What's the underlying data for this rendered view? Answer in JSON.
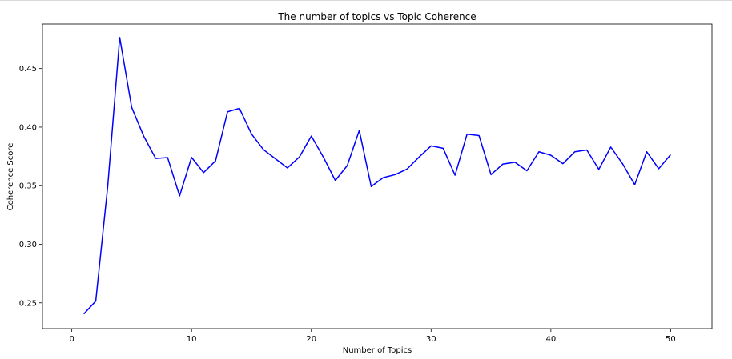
{
  "chart_data": {
    "type": "line",
    "title": "The number of topics vs Topic Coherence",
    "xlabel": "Number of Topics",
    "ylabel": "Coherence Score",
    "xlim": [
      -2.45,
      53.45
    ],
    "ylim": [
      0.228,
      0.488
    ],
    "xticks": [
      0,
      10,
      20,
      30,
      40,
      50
    ],
    "yticks": [
      0.25,
      0.3,
      0.35,
      0.4,
      0.45
    ],
    "ytick_labels": [
      "0.25",
      "0.30",
      "0.35",
      "0.40",
      "0.45"
    ],
    "grid": false,
    "color": "#0000ff",
    "x": [
      1,
      2,
      3,
      4,
      5,
      6,
      7,
      8,
      9,
      10,
      11,
      12,
      13,
      14,
      15,
      16,
      17,
      18,
      19,
      20,
      21,
      22,
      23,
      24,
      25,
      26,
      27,
      28,
      29,
      30,
      31,
      32,
      33,
      34,
      35,
      36,
      37,
      38,
      39,
      40,
      41,
      42,
      43,
      44,
      45,
      46,
      47,
      48,
      49,
      50
    ],
    "y": [
      0.2405,
      0.2515,
      0.3495,
      0.4765,
      0.4168,
      0.3924,
      0.3733,
      0.374,
      0.3413,
      0.3742,
      0.3612,
      0.3712,
      0.4131,
      0.416,
      0.3942,
      0.3808,
      0.373,
      0.3652,
      0.3745,
      0.3924,
      0.3745,
      0.3545,
      0.3672,
      0.3972,
      0.3493,
      0.3569,
      0.3595,
      0.3643,
      0.3745,
      0.384,
      0.382,
      0.359,
      0.394,
      0.3928,
      0.3595,
      0.3685,
      0.37,
      0.3628,
      0.379,
      0.376,
      0.3688,
      0.379,
      0.3805,
      0.364,
      0.383,
      0.3685,
      0.3508,
      0.379,
      0.3645,
      0.3765
    ]
  }
}
